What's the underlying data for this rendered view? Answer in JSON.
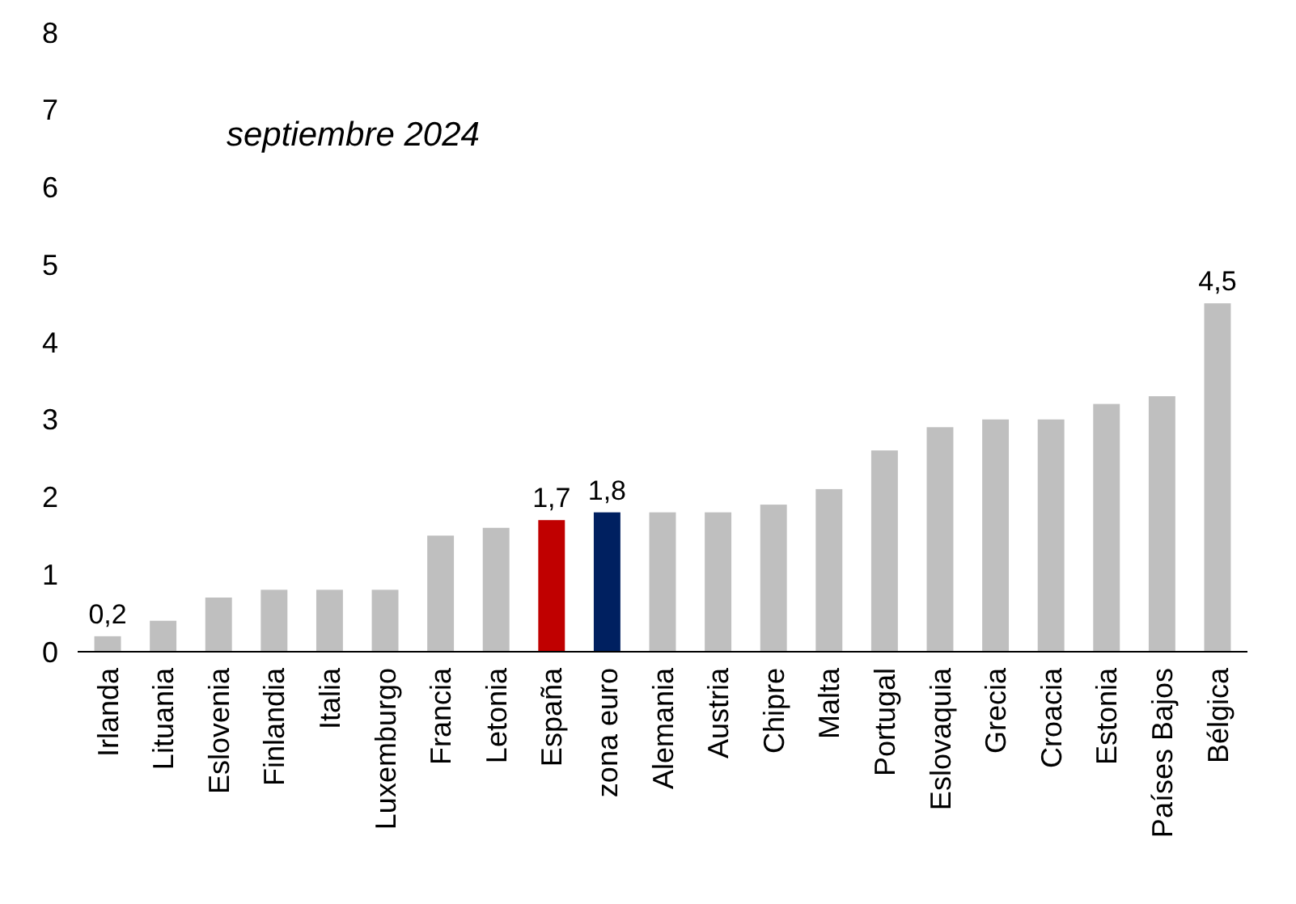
{
  "chart_data": {
    "type": "bar",
    "categories": [
      "Irlanda",
      "Lituania",
      "Eslovenia",
      "Finlandia",
      "Italia",
      "Luxemburgo",
      "Francia",
      "Letonia",
      "España",
      "zona euro",
      "Alemania",
      "Austria",
      "Chipre",
      "Malta",
      "Portugal",
      "Eslovaquia",
      "Grecia",
      "Croacia",
      "Estonia",
      "Países Bajos",
      "Bélgica"
    ],
    "values": [
      0.2,
      0.4,
      0.7,
      0.8,
      0.8,
      0.8,
      1.5,
      1.6,
      1.7,
      1.8,
      1.8,
      1.8,
      1.9,
      2.1,
      2.6,
      2.9,
      3.0,
      3.0,
      3.2,
      3.3,
      4.5
    ],
    "colors": [
      "#bfbfbf",
      "#bfbfbf",
      "#bfbfbf",
      "#bfbfbf",
      "#bfbfbf",
      "#bfbfbf",
      "#bfbfbf",
      "#bfbfbf",
      "#c00000",
      "#002060",
      "#bfbfbf",
      "#bfbfbf",
      "#bfbfbf",
      "#bfbfbf",
      "#bfbfbf",
      "#bfbfbf",
      "#bfbfbf",
      "#bfbfbf",
      "#bfbfbf",
      "#bfbfbf",
      "#bfbfbf"
    ],
    "value_labels": [
      "0,2",
      null,
      null,
      null,
      null,
      null,
      null,
      null,
      "1,7",
      "1,8",
      null,
      null,
      null,
      null,
      null,
      null,
      null,
      null,
      null,
      null,
      "4,5"
    ],
    "annotations": [
      "septiembre 2024"
    ],
    "ylim": [
      0,
      8
    ],
    "yticks": [
      0,
      1,
      2,
      3,
      4,
      5,
      6,
      7,
      8
    ]
  }
}
